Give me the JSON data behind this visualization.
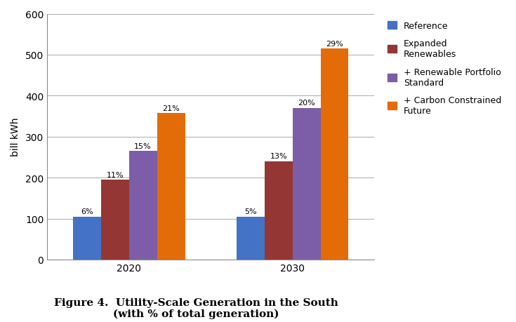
{
  "categories": [
    "2020",
    "2030"
  ],
  "series": [
    {
      "name": "Reference",
      "values": [
        105,
        105
      ],
      "color": "#4472C4",
      "labels": [
        "6%",
        "5%"
      ]
    },
    {
      "name": "Expanded\nRenewables",
      "values": [
        195,
        240
      ],
      "color": "#943634",
      "labels": [
        "11%",
        "13%"
      ]
    },
    {
      "name": "+ Renewable Portfolio\nStandard",
      "values": [
        265,
        370
      ],
      "color": "#7B5EA7",
      "labels": [
        "15%",
        "20%"
      ]
    },
    {
      "name": "+ Carbon Constrained\nFuture",
      "values": [
        358,
        515
      ],
      "color": "#E36C09",
      "labels": [
        "21%",
        "29%"
      ]
    }
  ],
  "ylabel": "bill kWh",
  "ylim": [
    0,
    600
  ],
  "yticks": [
    0,
    100,
    200,
    300,
    400,
    500,
    600
  ],
  "figsize": [
    7.35,
    4.6
  ],
  "dpi": 100,
  "bar_width": 0.12,
  "group_centers": [
    0.3,
    1.0
  ],
  "title_line1": "Figure 4.  Utility-Scale Generation in the South",
  "title_line2": "(with % of total generation)",
  "title_fontsize": 11,
  "background_color": "#FFFFFF",
  "legend_fontsize": 9,
  "label_fontsize": 8,
  "ylabel_fontsize": 10,
  "xtick_fontsize": 10
}
